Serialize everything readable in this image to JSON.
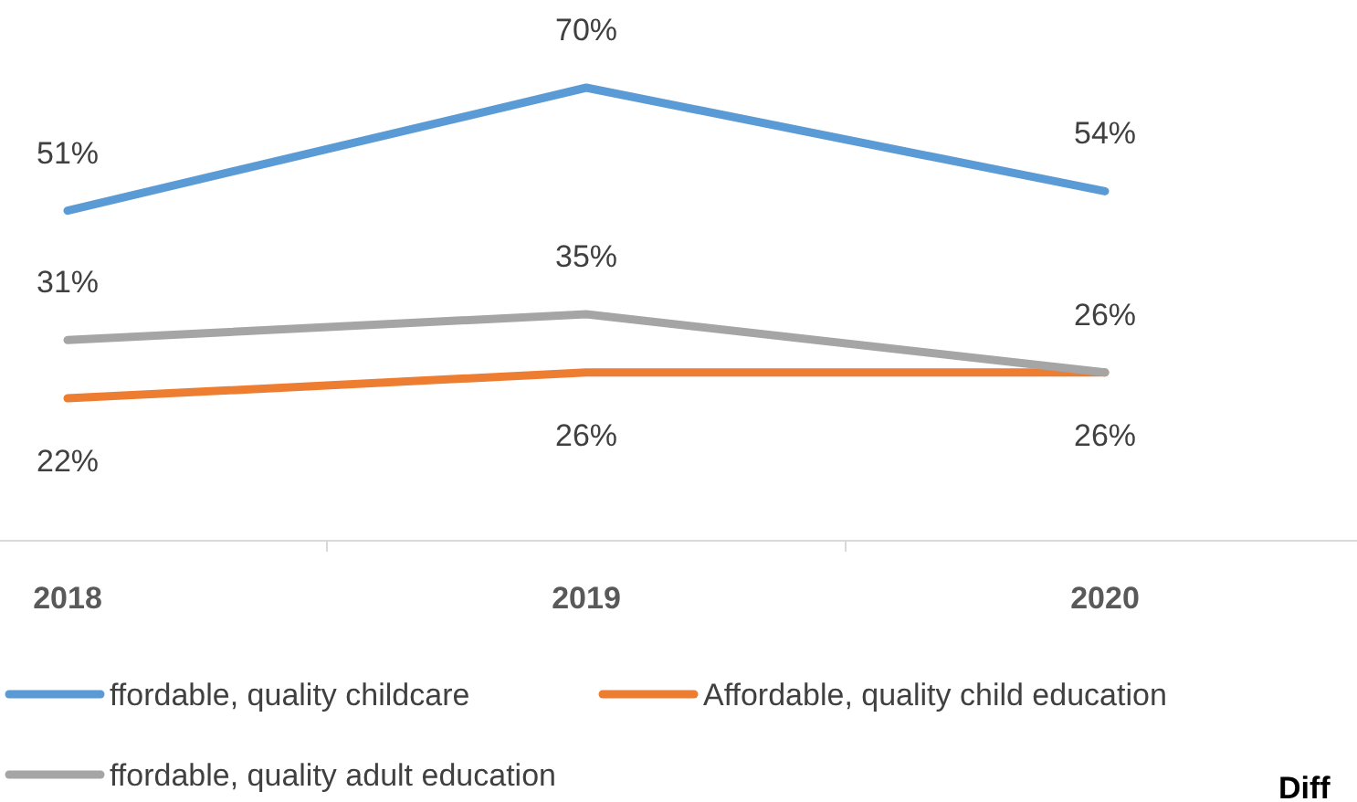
{
  "chart_data": {
    "type": "line",
    "categories": [
      "2018",
      "2019",
      "2020"
    ],
    "series": [
      {
        "name": "ffordable, quality childcare",
        "color": "#5b9bd5",
        "values": [
          51,
          70,
          54
        ],
        "value_labels": [
          "51%",
          "70%",
          "54%"
        ]
      },
      {
        "name": "Affordable, quality child education",
        "color": "#ed7d31",
        "values": [
          22,
          26,
          26
        ],
        "value_labels": [
          "22%",
          "26%",
          "26%"
        ]
      },
      {
        "name": "ffordable, quality adult education",
        "color": "#a5a5a5",
        "values": [
          31,
          35,
          26
        ],
        "value_labels": [
          "31%",
          "35%",
          "26%"
        ]
      }
    ],
    "legend": "bottom",
    "marker": "none",
    "line_style": "solid",
    "annotations": [
      "Diff"
    ]
  }
}
